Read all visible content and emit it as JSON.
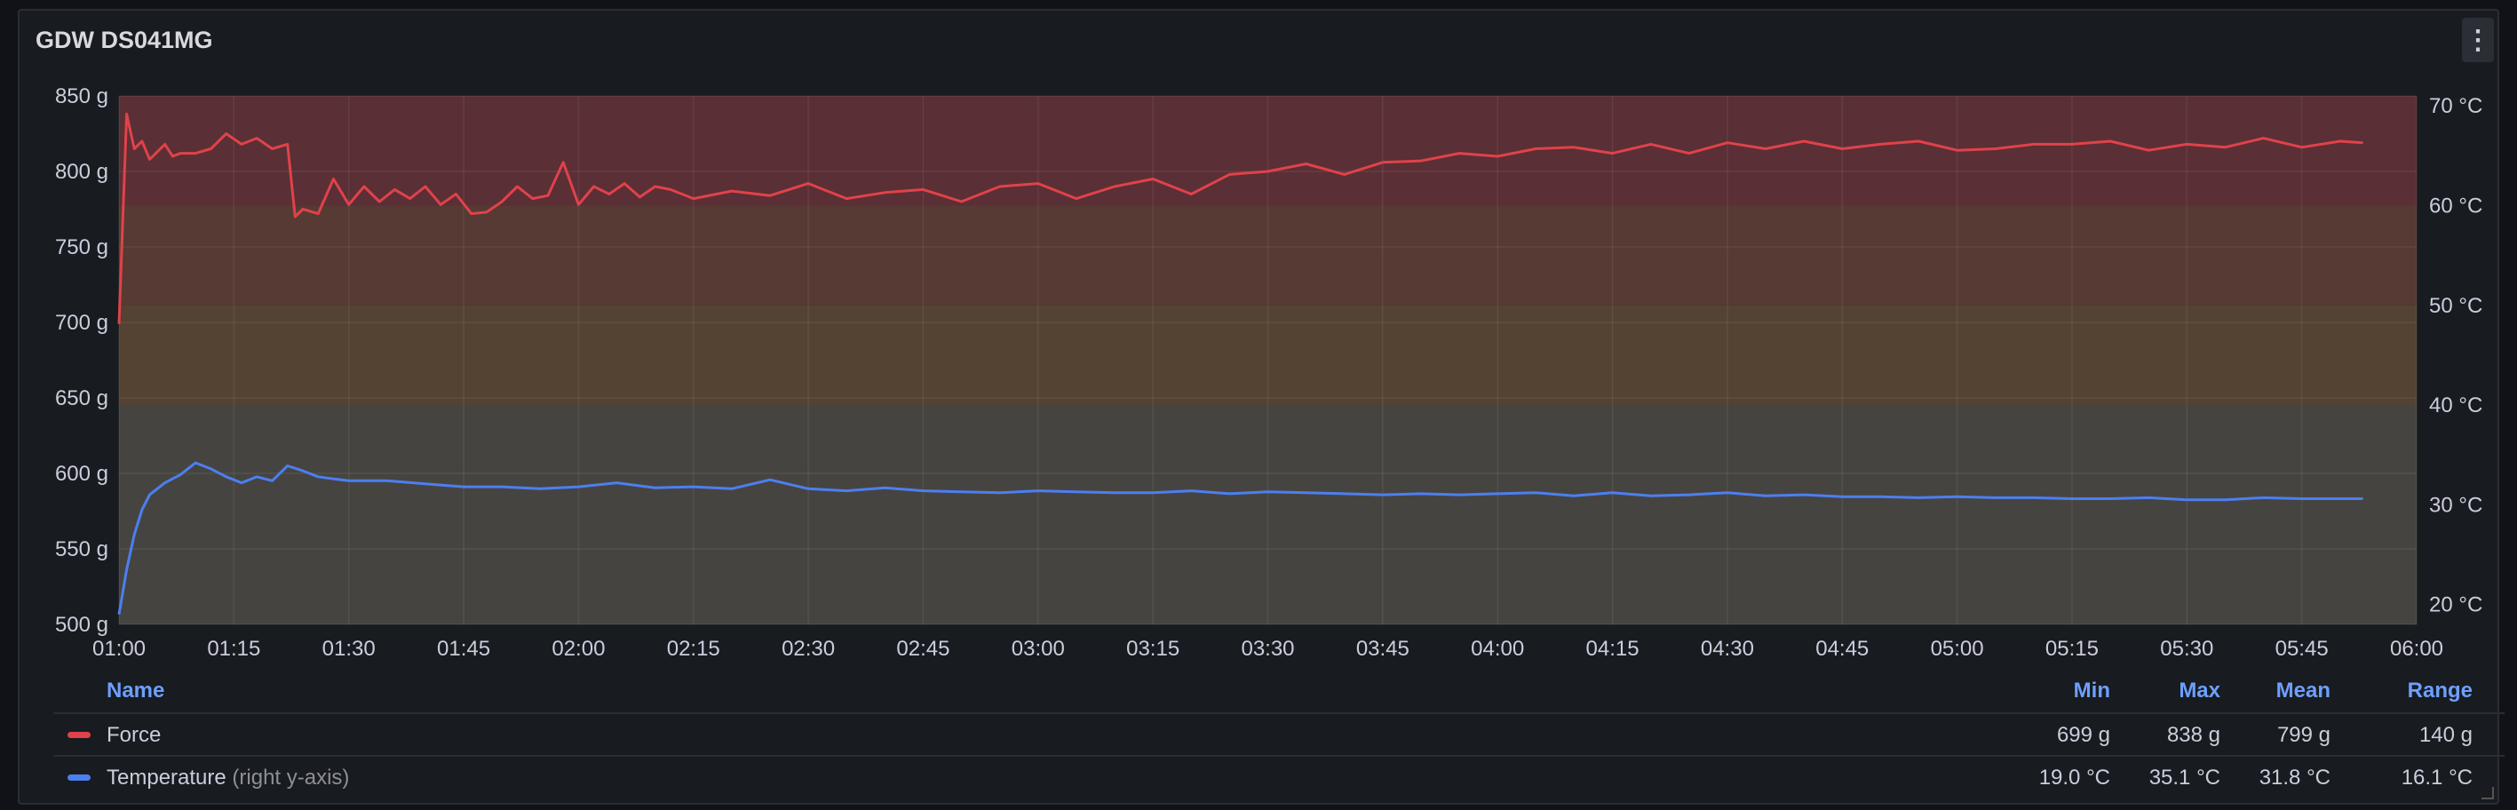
{
  "panel": {
    "title": "GDW DS041MG",
    "menu_icon": "vertical-ellipsis-icon"
  },
  "legend": {
    "headers": {
      "name": "Name",
      "min": "Min",
      "max": "Max",
      "mean": "Mean",
      "range": "Range"
    },
    "rows": [
      {
        "name": "Force",
        "suffix": "",
        "min": "699 g",
        "max": "838 g",
        "mean": "799 g",
        "range": "140 g",
        "color": "#e0424a"
      },
      {
        "name": "Temperature",
        "suffix": "(right y-axis)",
        "min": "19.0 °C",
        "max": "35.1 °C",
        "mean": "31.8 °C",
        "range": "16.1 °C",
        "color": "#4c7ff0"
      }
    ]
  },
  "chart_data": {
    "type": "line",
    "x_ticks": [
      "01:00",
      "01:15",
      "01:30",
      "01:45",
      "02:00",
      "02:15",
      "02:30",
      "02:45",
      "03:00",
      "03:15",
      "03:30",
      "03:45",
      "04:00",
      "04:15",
      "04:30",
      "04:45",
      "05:00",
      "05:15",
      "05:30",
      "05:45",
      "06:00"
    ],
    "left_axis": {
      "unit": "g",
      "ylim": [
        500,
        850
      ],
      "ticks": [
        "850 g",
        "800 g",
        "750 g",
        "700 g",
        "650 g",
        "600 g",
        "550 g",
        "500 g"
      ]
    },
    "right_axis": {
      "unit": "°C",
      "ylim": [
        18,
        71
      ],
      "ticks": [
        "70 °C",
        "60 °C",
        "50 °C",
        "40 °C",
        "30 °C",
        "20 °C"
      ]
    },
    "threshold_bands_right_axis": [
      {
        "from": 60,
        "to": 71,
        "color": "#5a2f35"
      },
      {
        "from": 50,
        "to": 60,
        "color": "#563a33"
      },
      {
        "from": 40,
        "to": 50,
        "color": "#544232"
      },
      {
        "from": 18,
        "to": 40,
        "color": "#464441"
      }
    ],
    "series": [
      {
        "name": "Force",
        "axis": "left",
        "color": "#e0424a",
        "x": [
          "01:00",
          "01:01",
          "01:02",
          "01:03",
          "01:04",
          "01:06",
          "01:07",
          "01:08",
          "01:10",
          "01:12",
          "01:14",
          "01:16",
          "01:18",
          "01:20",
          "01:22",
          "01:23",
          "01:24",
          "01:26",
          "01:28",
          "01:30",
          "01:32",
          "01:34",
          "01:36",
          "01:38",
          "01:40",
          "01:42",
          "01:44",
          "01:46",
          "01:48",
          "01:50",
          "01:52",
          "01:54",
          "01:56",
          "01:58",
          "02:00",
          "02:02",
          "02:04",
          "02:06",
          "02:08",
          "02:10",
          "02:12",
          "02:15",
          "02:20",
          "02:25",
          "02:30",
          "02:35",
          "02:40",
          "02:45",
          "02:50",
          "02:55",
          "03:00",
          "03:05",
          "03:10",
          "03:15",
          "03:20",
          "03:25",
          "03:30",
          "03:35",
          "03:40",
          "03:45",
          "03:50",
          "03:55",
          "04:00",
          "04:05",
          "04:10",
          "04:15",
          "04:20",
          "04:25",
          "04:30",
          "04:35",
          "04:40",
          "04:45",
          "04:50",
          "04:55",
          "05:00",
          "05:05",
          "05:10",
          "05:15",
          "05:20",
          "05:25",
          "05:30",
          "05:35",
          "05:40",
          "05:45",
          "05:50",
          "05:53"
        ],
        "y": [
          699,
          838,
          815,
          820,
          808,
          818,
          810,
          812,
          812,
          815,
          825,
          818,
          822,
          815,
          818,
          770,
          775,
          772,
          795,
          778,
          790,
          780,
          788,
          782,
          790,
          778,
          785,
          772,
          773,
          780,
          790,
          782,
          784,
          806,
          778,
          790,
          785,
          792,
          783,
          790,
          788,
          782,
          787,
          784,
          792,
          782,
          786,
          788,
          780,
          790,
          792,
          782,
          790,
          795,
          785,
          798,
          800,
          805,
          798,
          806,
          807,
          812,
          810,
          815,
          816,
          812,
          818,
          812,
          819,
          815,
          820,
          815,
          818,
          820,
          814,
          815,
          818,
          818,
          820,
          814,
          818,
          816,
          822,
          816,
          820,
          819
        ]
      },
      {
        "name": "Temperature",
        "axis": "right",
        "color": "#4c7ff0",
        "x": [
          "01:00",
          "01:01",
          "01:02",
          "01:03",
          "01:04",
          "01:06",
          "01:08",
          "01:10",
          "01:12",
          "01:14",
          "01:16",
          "01:18",
          "01:20",
          "01:22",
          "01:24",
          "01:26",
          "01:28",
          "01:30",
          "01:35",
          "01:40",
          "01:45",
          "01:50",
          "01:55",
          "02:00",
          "02:05",
          "02:10",
          "02:15",
          "02:20",
          "02:25",
          "02:30",
          "02:35",
          "02:40",
          "02:45",
          "02:50",
          "02:55",
          "03:00",
          "03:05",
          "03:10",
          "03:15",
          "03:20",
          "03:25",
          "03:30",
          "03:35",
          "03:40",
          "03:45",
          "03:50",
          "03:55",
          "04:00",
          "04:05",
          "04:10",
          "04:15",
          "04:20",
          "04:25",
          "04:30",
          "04:35",
          "04:40",
          "04:45",
          "04:50",
          "04:55",
          "05:00",
          "05:05",
          "05:10",
          "05:15",
          "05:20",
          "05:25",
          "05:30",
          "05:35",
          "05:40",
          "05:45",
          "05:50",
          "05:53"
        ],
        "y": [
          19.0,
          23.5,
          27.0,
          29.5,
          31.0,
          32.2,
          33.0,
          34.2,
          33.6,
          32.8,
          32.2,
          32.8,
          32.4,
          33.9,
          33.4,
          32.8,
          32.6,
          32.4,
          32.4,
          32.1,
          31.8,
          31.8,
          31.6,
          31.8,
          32.2,
          31.7,
          31.8,
          31.6,
          32.5,
          31.6,
          31.4,
          31.7,
          31.4,
          31.3,
          31.2,
          31.4,
          31.3,
          31.2,
          31.2,
          31.4,
          31.1,
          31.3,
          31.2,
          31.1,
          31.0,
          31.1,
          31.0,
          31.1,
          31.2,
          30.9,
          31.2,
          30.9,
          31.0,
          31.2,
          30.9,
          31.0,
          30.8,
          30.8,
          30.7,
          30.8,
          30.7,
          30.7,
          30.6,
          30.6,
          30.7,
          30.5,
          30.5,
          30.7,
          30.6,
          30.6,
          30.6
        ]
      }
    ]
  }
}
